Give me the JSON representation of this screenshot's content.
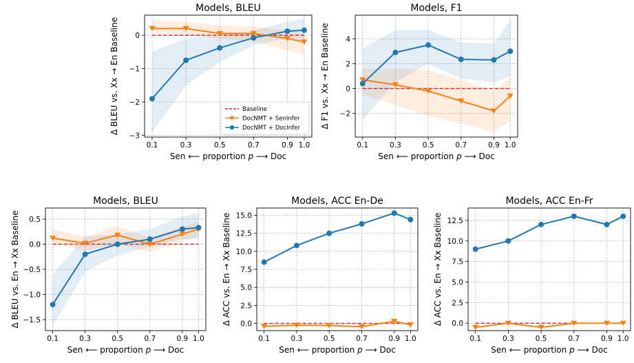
{
  "shared": {
    "x_ticks": [
      0.1,
      0.3,
      0.5,
      0.7,
      0.9,
      1.0
    ],
    "x_label_left": "Sen ⟵",
    "x_label_mid": "proportion",
    "x_label_var": "p",
    "x_label_right": "⟶ Doc",
    "colors": {
      "baseline": "#d62728",
      "seninfer": "#ff7f0e",
      "docinfer": "#1f77b4"
    }
  },
  "legend": {
    "baseline": "Baseline",
    "seninfer": "DocNMT + SenInfer",
    "docinfer": "DocNMT + DocInfer"
  },
  "chart_data": [
    {
      "type": "line",
      "title": "Models, BLEU",
      "ylabel": "Δ BLEU vs. Xx → En Baseline",
      "ylim": [
        -3.05,
        0.6
      ],
      "yticks": [
        0,
        -1,
        -2,
        -3
      ],
      "x": [
        0.1,
        0.3,
        0.5,
        0.7,
        0.9,
        1.0
      ],
      "series": [
        {
          "name": "Baseline",
          "values": [
            0,
            0,
            0,
            0,
            0,
            0
          ]
        },
        {
          "name": "DocNMT + SenInfer",
          "values": [
            0.2,
            0.2,
            0.05,
            0.05,
            -0.1,
            -0.2
          ],
          "band": [
            [
              0.1,
              0.45
            ],
            [
              0.0,
              0.4
            ],
            [
              -0.1,
              0.3
            ],
            [
              -0.2,
              0.25
            ],
            [
              -0.45,
              0.15
            ],
            [
              -0.6,
              0.05
            ]
          ]
        },
        {
          "name": "DocNMT + DocInfer",
          "values": [
            -1.9,
            -0.75,
            -0.38,
            -0.08,
            0.12,
            0.15
          ],
          "band": [
            [
              -2.9,
              -0.5
            ],
            [
              -1.5,
              -0.1
            ],
            [
              -0.8,
              0.0
            ],
            [
              -0.3,
              0.15
            ],
            [
              -0.1,
              0.4
            ],
            [
              -0.25,
              0.5
            ]
          ]
        }
      ],
      "legend_position": "lower right",
      "grid": true
    },
    {
      "type": "line",
      "title": "Models, F1",
      "ylabel": "Δ F1 vs. Xx → En Baseline",
      "ylim": [
        -3.9,
        5.9
      ],
      "yticks": [
        -2,
        0,
        2,
        4
      ],
      "x": [
        0.1,
        0.3,
        0.5,
        0.7,
        0.9,
        1.0
      ],
      "series": [
        {
          "name": "Baseline",
          "values": [
            0,
            0,
            0,
            0,
            0,
            0
          ]
        },
        {
          "name": "DocNMT + SenInfer",
          "values": [
            0.7,
            0.3,
            -0.2,
            -1.0,
            -1.8,
            -0.6
          ],
          "band": [
            [
              -0.5,
              1.6
            ],
            [
              -1.3,
              1.6
            ],
            [
              -2.2,
              1.5
            ],
            [
              -2.8,
              0.7
            ],
            [
              -3.5,
              -0.2
            ],
            [
              -2.6,
              0.9
            ]
          ]
        },
        {
          "name": "DocNMT + DocInfer",
          "values": [
            0.4,
            2.9,
            3.5,
            2.35,
            2.3,
            3.0
          ],
          "band": [
            [
              -2.5,
              3.2
            ],
            [
              0.5,
              4.7
            ],
            [
              2.0,
              4.7
            ],
            [
              0.8,
              3.7
            ],
            [
              0.5,
              3.6
            ],
            [
              1.0,
              5.5
            ]
          ]
        }
      ],
      "grid": true
    },
    {
      "type": "line",
      "title": "Models, BLEU",
      "ylabel": "Δ BLEU vs. En → Xx Baseline",
      "ylim": [
        -1.72,
        0.72
      ],
      "yticks": [
        -1.5,
        -1.0,
        -0.5,
        0.0,
        0.5
      ],
      "x": [
        0.1,
        0.3,
        0.5,
        0.7,
        0.9,
        1.0
      ],
      "series": [
        {
          "name": "Baseline",
          "values": [
            0,
            0,
            0,
            0,
            0,
            0
          ]
        },
        {
          "name": "DocNMT + SenInfer",
          "values": [
            0.12,
            0.02,
            0.18,
            0.0,
            0.2,
            0.3
          ],
          "band": [
            [
              0.0,
              0.3
            ],
            [
              -0.12,
              0.15
            ],
            [
              0.0,
              0.35
            ],
            [
              -0.15,
              0.12
            ],
            [
              0.05,
              0.35
            ],
            [
              0.15,
              0.45
            ]
          ]
        },
        {
          "name": "DocNMT + DocInfer",
          "values": [
            -1.2,
            -0.2,
            0.0,
            0.1,
            0.3,
            0.33
          ],
          "band": [
            [
              -1.62,
              -0.6
            ],
            [
              -0.55,
              0.15
            ],
            [
              -0.22,
              0.2
            ],
            [
              -0.05,
              0.3
            ],
            [
              0.1,
              0.55
            ],
            [
              0.1,
              0.62
            ]
          ]
        }
      ],
      "grid": true
    },
    {
      "type": "line",
      "title": "Models, ACC En-De",
      "ylabel": "Δ ACC vs. En → Xx Baseline",
      "ylim": [
        -1.0,
        16.0
      ],
      "yticks": [
        0.0,
        2.5,
        5.0,
        7.5,
        10.0,
        12.5,
        15.0
      ],
      "x": [
        0.1,
        0.3,
        0.5,
        0.7,
        0.9,
        1.0
      ],
      "series": [
        {
          "name": "Baseline",
          "values": [
            0,
            0,
            0,
            0,
            0,
            0
          ]
        },
        {
          "name": "DocNMT + SenInfer",
          "values": [
            -0.4,
            -0.25,
            -0.3,
            -0.45,
            0.3,
            -0.2
          ]
        },
        {
          "name": "DocNMT + DocInfer",
          "values": [
            8.5,
            10.8,
            12.5,
            13.8,
            15.3,
            14.4
          ]
        }
      ],
      "grid": true
    },
    {
      "type": "line",
      "title": "Models, ACC En-Fr",
      "ylabel": "Δ ACC vs. En → Xx Baseline",
      "ylim": [
        -0.9,
        14.0
      ],
      "yticks": [
        0.0,
        2.5,
        5.0,
        7.5,
        10.0,
        12.5
      ],
      "x": [
        0.1,
        0.3,
        0.5,
        0.7,
        0.9,
        1.0
      ],
      "series": [
        {
          "name": "Baseline",
          "values": [
            0,
            0,
            0,
            0,
            0,
            0
          ]
        },
        {
          "name": "DocNMT + SenInfer",
          "values": [
            -0.5,
            0.0,
            -0.5,
            0.0,
            0.0,
            0.0
          ]
        },
        {
          "name": "DocNMT + DocInfer",
          "values": [
            9.0,
            10.0,
            12.0,
            13.0,
            12.0,
            13.0
          ]
        }
      ],
      "grid": true
    }
  ]
}
